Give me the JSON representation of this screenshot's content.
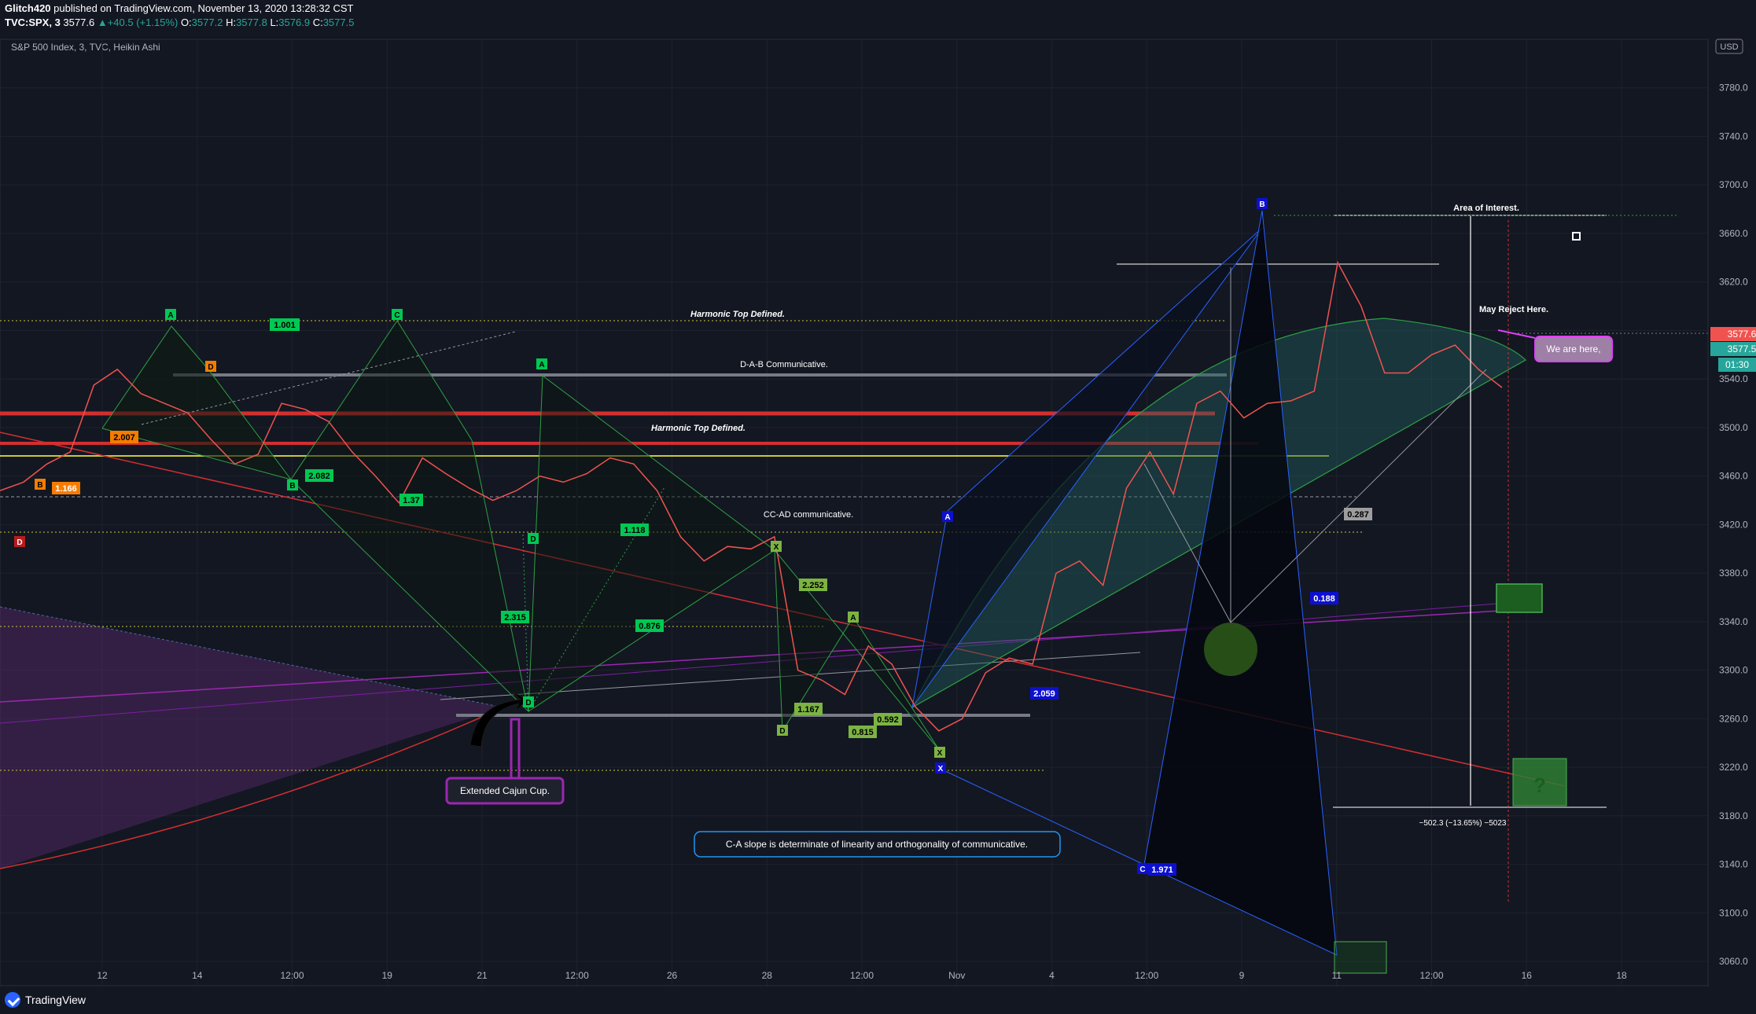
{
  "header": {
    "publisher": "Glitch420",
    "published_text": " published on TradingView.com, November 13, 2020 13:28:32 CST",
    "symbol": "TVC:SPX, 3",
    "last": "3577.6",
    "change": "+40.5 (+1.15%)",
    "o_label": "O:",
    "o": "3577.2",
    "h_label": "H:",
    "h": "3577.8",
    "l_label": "L:",
    "l": "3576.9",
    "c_label": "C:",
    "c": "3577.5",
    "subtitle": "S&P 500 Index, 3, TVC, Heikin Ashi"
  },
  "footer": {
    "brand": "TradingView"
  },
  "colors": {
    "bg": "#131722",
    "up": "#26a69a",
    "down": "#ef5350",
    "harmonic_green": "#2ea043",
    "accent_blue": "#2962ff"
  },
  "chart_data": {
    "type": "line",
    "currency": "USD",
    "ylim": [
      3040,
      3820
    ],
    "y_ticks": [
      3060,
      3100,
      3140,
      3180,
      3220,
      3260,
      3300,
      3340,
      3380,
      3420,
      3460,
      3500,
      3540,
      3580,
      3620,
      3660,
      3700,
      3740,
      3780
    ],
    "y_tick_labels": [
      "3060.0",
      "3100.0",
      "3140.0",
      "3180.0",
      "3220.0",
      "3260.0",
      "3300.0",
      "3340.0",
      "3380.0",
      "3420.0",
      "3460.0",
      "3500.0",
      "3540.0",
      "3580.0",
      "3620.0",
      "3660.0",
      "3700.0",
      "3740.0",
      "3780.0"
    ],
    "x_ticks": [
      "12",
      "14",
      "12:00",
      "19",
      "21",
      "12:00",
      "26",
      "28",
      "12:00",
      "Nov",
      "4",
      "12:00",
      "9",
      "11",
      "12:00",
      "16",
      "18"
    ],
    "price_labels": {
      "last": "3577.6",
      "close": "3577.5",
      "countdown": "01:30"
    },
    "series": [
      {
        "x": [
          0,
          30,
          60,
          90,
          120,
          150,
          180,
          210,
          240,
          270,
          300,
          330,
          360,
          390,
          420,
          450,
          480,
          510,
          540,
          570,
          600,
          630,
          660,
          690,
          720,
          750,
          780,
          810,
          840,
          870,
          900,
          930,
          960,
          990,
          1020,
          1050,
          1080,
          1110,
          1140,
          1170,
          1200,
          1230,
          1260,
          1290,
          1320,
          1350,
          1380,
          1410,
          1440,
          1470,
          1500,
          1530,
          1560,
          1590,
          1620,
          1650,
          1680,
          1710,
          1740,
          1770,
          1800,
          1830,
          1860,
          1890,
          1920
        ],
        "y": [
          3448,
          3455,
          3470,
          3480,
          3535,
          3548,
          3528,
          3520,
          3512,
          3490,
          3470,
          3478,
          3520,
          3515,
          3505,
          3480,
          3460,
          3438,
          3475,
          3462,
          3450,
          3440,
          3448,
          3460,
          3455,
          3462,
          3475,
          3470,
          3448,
          3410,
          3390,
          3402,
          3400,
          3410,
          3300,
          3292,
          3280,
          3320,
          3305,
          3270,
          3250,
          3260,
          3298,
          3310,
          3305,
          3380,
          3390,
          3370,
          3450,
          3480,
          3445,
          3520,
          3530,
          3508,
          3520,
          3522,
          3530,
          3636,
          3600,
          3545,
          3545,
          3560,
          3568,
          3548,
          3533
        ]
      }
    ],
    "annotations": {
      "area_of_interest": "Area of Interest.",
      "may_reject": "May Reject Here.",
      "we_are_here": "We are here,",
      "harmonic_top_1": "Harmonic Top Defined.",
      "harmonic_top_2": "Harmonic Top Defined.",
      "dab": "D-A-B Communicative.",
      "ccad": "CC-AD communicative.",
      "cajun": "Extended Cajun Cup.",
      "ca_slope": "C-A slope is determinate of linearity and orthogonality of communicative.",
      "measure": "−502.3 (−13.65%) −5023",
      "ratio_1001": "1.001",
      "ratio_2082": "2.082",
      "ratio_1166": "1.166",
      "ratio_2007": "2.007",
      "ratio_137": "1.37",
      "ratio_1118": "1.118",
      "ratio_2315": "2.315",
      "ratio_0876": "0.876",
      "ratio_2252": "2.252",
      "ratio_1167": "1.167",
      "ratio_0592": "0.592",
      "ratio_0815": "0.815",
      "ratio_2059": "2.059",
      "ratio_1971": "1.971",
      "ratio_0188": "0.188",
      "ratio_0287": "0.287",
      "question": "?"
    },
    "pattern_points": {
      "A": "A",
      "B": "B",
      "C": "C",
      "D": "D",
      "X": "X"
    }
  }
}
